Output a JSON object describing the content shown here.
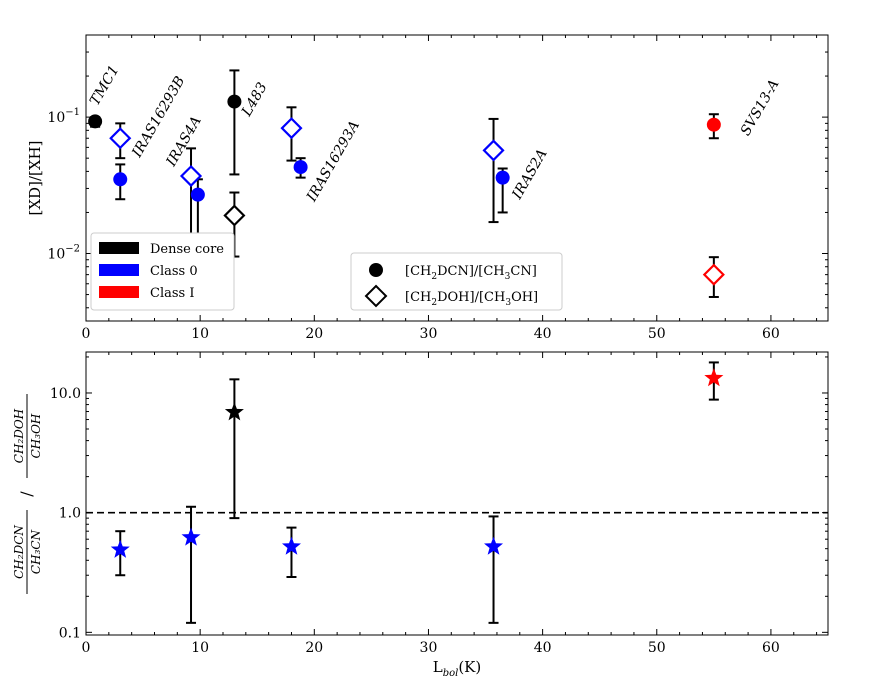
{
  "colors": {
    "dense_core": "#000000",
    "class_0": "#0000ff",
    "class_I": "#ff0000"
  },
  "chart_data": [
    {
      "type": "scatter",
      "panel": "top",
      "ylabel": "[XD]/[XH]",
      "yscale": "log",
      "xlim": [
        0,
        65
      ],
      "ylim": [
        0.0032,
        0.4
      ],
      "x_ticks": [
        "0",
        "10",
        "20",
        "30",
        "40",
        "50",
        "60"
      ],
      "y_ticks": [
        "10",
        "10"
      ],
      "y_tick_exponents": [
        "−1",
        "−2"
      ],
      "series": [
        {
          "name": "[CH2DCN]/[CH3CN]",
          "marker": "filled-circle",
          "points": [
            {
              "x": 0.8,
              "y": 0.093,
              "lo": 0.085,
              "hi": 0.1,
              "class": "dense_core"
            },
            {
              "x": 3.0,
              "y": 0.035,
              "lo": 0.025,
              "hi": 0.045,
              "class": "class_0"
            },
            {
              "x": 9.8,
              "y": 0.027,
              "lo": 0.011,
              "hi": 0.035,
              "class": "class_0"
            },
            {
              "x": 13.0,
              "y": 0.13,
              "lo": 0.038,
              "hi": 0.22,
              "class": "dense_core"
            },
            {
              "x": 18.8,
              "y": 0.043,
              "lo": 0.036,
              "hi": 0.05,
              "class": "class_0"
            },
            {
              "x": 36.5,
              "y": 0.036,
              "lo": 0.02,
              "hi": 0.042,
              "class": "class_0"
            },
            {
              "x": 55.0,
              "y": 0.088,
              "lo": 0.07,
              "hi": 0.105,
              "class": "class_I"
            }
          ]
        },
        {
          "name": "[CH2DOH]/[CH3OH]",
          "marker": "open-diamond",
          "points": [
            {
              "x": 3.0,
              "y": 0.07,
              "lo": 0.05,
              "hi": 0.09,
              "class": "class_0"
            },
            {
              "x": 9.2,
              "y": 0.037,
              "lo": 0.014,
              "hi": 0.059,
              "class": "class_0"
            },
            {
              "x": 13.0,
              "y": 0.019,
              "lo": 0.0095,
              "hi": 0.028,
              "class": "dense_core"
            },
            {
              "x": 18.0,
              "y": 0.083,
              "lo": 0.048,
              "hi": 0.118,
              "class": "class_0"
            },
            {
              "x": 35.7,
              "y": 0.057,
              "lo": 0.017,
              "hi": 0.097,
              "class": "class_0"
            },
            {
              "x": 55.0,
              "y": 0.007,
              "lo": 0.0048,
              "hi": 0.0094,
              "class": "class_I"
            }
          ]
        }
      ],
      "source_labels": [
        {
          "text": "TMC1",
          "x": 1.0,
          "y": 0.12
        },
        {
          "text": "IRAS16293B",
          "x": 4.7,
          "y": 0.05
        },
        {
          "text": "IRAS4A",
          "x": 7.7,
          "y": 0.043
        },
        {
          "text": "L483",
          "x": 14.3,
          "y": 0.1
        },
        {
          "text": "IRAS16293A",
          "x": 20.0,
          "y": 0.0237
        },
        {
          "text": "IRAS2A",
          "x": 38.0,
          "y": 0.0247
        },
        {
          "text": "SVS13-A",
          "x": 58.0,
          "y": 0.072
        }
      ],
      "legend_classes": [
        "Dense core",
        "Class 0",
        "Class I"
      ],
      "legend_markers": {
        "circle": {
          "base": "[CH",
          "sub1": "2",
          "mid": "DCN]/[CH",
          "sub2": "3",
          "end": "CN]"
        },
        "diamond": {
          "base": "[CH",
          "sub1": "2",
          "mid": "DOH]/[CH",
          "sub2": "3",
          "end": "OH]"
        }
      }
    },
    {
      "type": "scatter",
      "panel": "bottom",
      "yscale": "log",
      "xlim": [
        0,
        65
      ],
      "ylim": [
        0.095,
        22
      ],
      "x_ticks": [
        "0",
        "10",
        "20",
        "30",
        "40",
        "50",
        "60"
      ],
      "y_ticks": [
        "0.1",
        "1.0",
        "10.0"
      ],
      "xlabel": {
        "base": "L",
        "sub": "bol",
        "end": "(K)"
      },
      "ylabel": {
        "num1": "CH₂DCN",
        "den1": "CH₃CN",
        "sep": "/",
        "num2": "CH₂DOH",
        "den2": "CH₃OH"
      },
      "reference_line": 1.0,
      "series": [
        {
          "name": "ratio",
          "marker": "star",
          "points": [
            {
              "x": 3.0,
              "y": 0.49,
              "lo": 0.3,
              "hi": 0.7,
              "class": "class_0"
            },
            {
              "x": 9.2,
              "y": 0.62,
              "lo": 0.12,
              "hi": 1.12,
              "class": "class_0"
            },
            {
              "x": 13.0,
              "y": 6.9,
              "lo": 0.9,
              "hi": 13.0,
              "class": "dense_core"
            },
            {
              "x": 18.0,
              "y": 0.52,
              "lo": 0.29,
              "hi": 0.75,
              "class": "class_0"
            },
            {
              "x": 35.7,
              "y": 0.52,
              "lo": 0.12,
              "hi": 0.93,
              "class": "class_0"
            },
            {
              "x": 55.0,
              "y": 13.3,
              "lo": 8.8,
              "hi": 18.0,
              "class": "class_I"
            }
          ]
        }
      ]
    }
  ]
}
